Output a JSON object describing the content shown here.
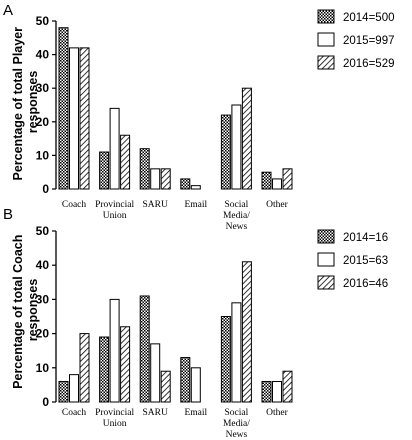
{
  "colors": {
    "ink": "#000000",
    "background": "#ffffff",
    "fill_2015": "#ffffff"
  },
  "chart_data": [
    {
      "type": "bar",
      "panel": "A",
      "ylabel": "Percentage of total Player responses",
      "ylabel_lines": [
        "Percentage of total Player",
        "responses"
      ],
      "ylim": [
        0,
        50
      ],
      "yticks": [
        0,
        10,
        20,
        30,
        40,
        50
      ],
      "categories": [
        "Coach",
        "Provincial Union",
        "SARU",
        "Email",
        "Social Media/ News",
        "Other"
      ],
      "category_lines": [
        [
          "Coach"
        ],
        [
          "Provincial",
          "Union"
        ],
        [
          "SARU"
        ],
        [
          "Email"
        ],
        [
          "Social",
          "Media/",
          "News"
        ],
        [
          "Other"
        ]
      ],
      "legend_position": "top-right",
      "series": [
        {
          "name": "2014=500",
          "pattern": "crosshatch",
          "values": [
            48,
            11,
            12,
            3,
            22,
            5
          ]
        },
        {
          "name": "2015=997",
          "pattern": "empty",
          "values": [
            42,
            24,
            6,
            1,
            25,
            3
          ]
        },
        {
          "name": "2016=529",
          "pattern": "diagonal",
          "values": [
            42,
            16,
            6,
            0,
            30,
            6
          ]
        }
      ]
    },
    {
      "type": "bar",
      "panel": "B",
      "ylabel": "Percentage of total Coach responses",
      "ylabel_lines": [
        "Percentage of total Coach",
        "responses"
      ],
      "ylim": [
        0,
        50
      ],
      "yticks": [
        0,
        10,
        20,
        30,
        40,
        50
      ],
      "categories": [
        "Coach",
        "Provincial Union",
        "SARU",
        "Email",
        "Social Media/ News",
        "Other"
      ],
      "category_lines": [
        [
          "Coach"
        ],
        [
          "Provincial",
          "Union"
        ],
        [
          "SARU"
        ],
        [
          "Email"
        ],
        [
          "Social",
          "Media/",
          "News"
        ],
        [
          "Other"
        ]
      ],
      "legend_position": "top-right",
      "series": [
        {
          "name": "2014=16",
          "pattern": "crosshatch",
          "values": [
            6,
            19,
            31,
            13,
            25,
            6
          ]
        },
        {
          "name": "2015=63",
          "pattern": "empty",
          "values": [
            8,
            30,
            17,
            10,
            29,
            6
          ]
        },
        {
          "name": "2016=46",
          "pattern": "diagonal",
          "values": [
            20,
            22,
            9,
            0,
            41,
            9
          ]
        }
      ]
    }
  ]
}
